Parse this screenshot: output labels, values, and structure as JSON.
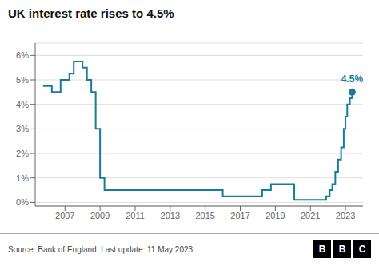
{
  "chart_data": {
    "type": "line",
    "title": "UK interest rate rises to 4.5%",
    "source": "Source: Bank of England. Last update: 11 May 2023",
    "logo": "BBC",
    "line_style": "step",
    "color": "#1a7a9a",
    "grid": "y",
    "annotations": [
      {
        "text": "4.5%",
        "x": 2023.38,
        "y": 4.5,
        "color": "#1a7a9a"
      }
    ],
    "xlim": [
      2005.3,
      2024.0
    ],
    "xticks": [
      2007,
      2009,
      2011,
      2013,
      2015,
      2017,
      2019,
      2021,
      2023
    ],
    "ylim": [
      -0.15,
      6.5
    ],
    "yticks": [
      {
        "value": 0,
        "label": "0%"
      },
      {
        "value": 1,
        "label": "1%"
      },
      {
        "value": 2,
        "label": "2%"
      },
      {
        "value": 3,
        "label": "3%"
      },
      {
        "value": 4,
        "label": "4%"
      },
      {
        "value": 5,
        "label": "5%"
      },
      {
        "value": 6,
        "label": "6%"
      }
    ],
    "x": [
      2005.75,
      2006.0,
      2006.25,
      2006.5,
      2006.75,
      2007.0,
      2007.25,
      2007.5,
      2007.75,
      2008.0,
      2008.25,
      2008.5,
      2008.75,
      2009.0,
      2009.25,
      2009.5,
      2009.75,
      2010.0,
      2012.0,
      2015.0,
      2015.25,
      2015.5,
      2016.0,
      2016.5,
      2016.75,
      2017.0,
      2017.25,
      2017.5,
      2017.75,
      2018.0,
      2018.25,
      2018.5,
      2018.75,
      2019.0,
      2019.25,
      2019.5,
      2019.75,
      2020.0,
      2020.08,
      2020.5,
      2021.0,
      2021.75,
      2021.9,
      2022.0,
      2022.1,
      2022.25,
      2022.42,
      2022.58,
      2022.75,
      2022.9,
      2023.0,
      2023.1,
      2023.25,
      2023.38
    ],
    "values": [
      4.75,
      4.75,
      4.5,
      4.5,
      5.0,
      5.0,
      5.25,
      5.75,
      5.75,
      5.5,
      5.0,
      4.5,
      3.0,
      1.0,
      0.5,
      0.5,
      0.5,
      0.5,
      0.5,
      0.5,
      0.5,
      0.5,
      0.25,
      0.25,
      0.25,
      0.25,
      0.25,
      0.25,
      0.25,
      0.25,
      0.5,
      0.5,
      0.75,
      0.75,
      0.75,
      0.75,
      0.75,
      0.75,
      0.1,
      0.1,
      0.1,
      0.1,
      0.25,
      0.25,
      0.5,
      0.75,
      1.25,
      1.75,
      2.25,
      3.0,
      3.5,
      4.0,
      4.25,
      4.5
    ]
  }
}
